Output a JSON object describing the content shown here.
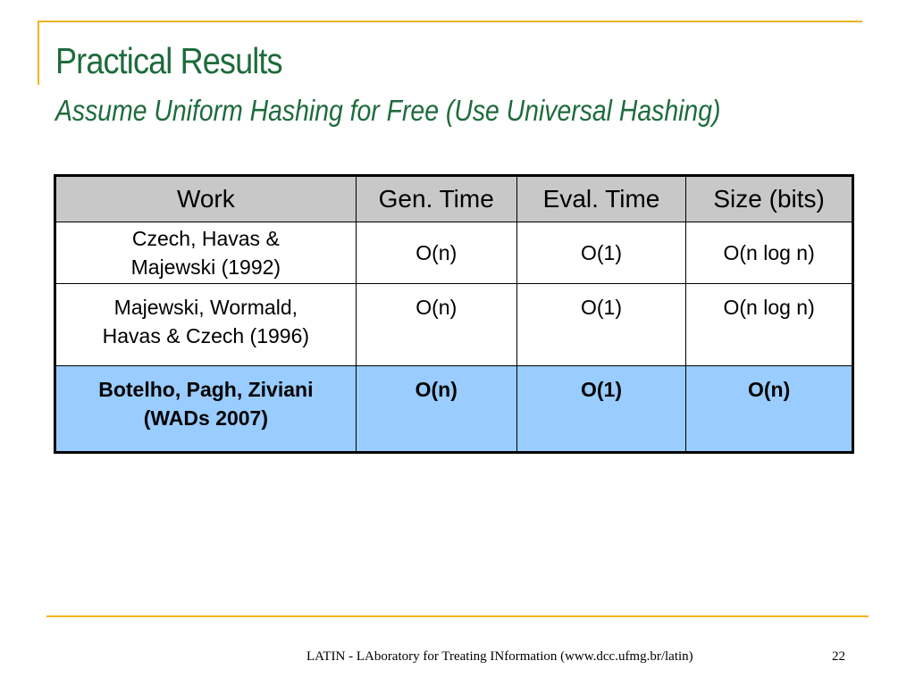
{
  "slide": {
    "title": "Practical Results",
    "subtitle": "Assume Uniform Hashing for Free (Use Universal Hashing)"
  },
  "table": {
    "headers": [
      "Work",
      "Gen. Time",
      "Eval. Time",
      "Size (bits)"
    ],
    "rows": [
      {
        "work": [
          "Czech, Havas &",
          "Majewski (1992)"
        ],
        "gen_time": "O(n)",
        "eval_time": "O(1)",
        "size": "O(n log n)"
      },
      {
        "work": [
          "Majewski, Wormald,",
          "Havas & Czech (1996)"
        ],
        "gen_time": "O(n)",
        "eval_time": "O(1)",
        "size": "O(n log n)"
      },
      {
        "work": [
          "Botelho, Pagh, Ziviani",
          "(WADs 2007)"
        ],
        "gen_time": "O(n)",
        "eval_time": "O(1)",
        "size": "O(n)"
      }
    ]
  },
  "footer": {
    "text": "LATIN - LAboratory for Treating INformation (www.dcc.ufmg.br/latin)",
    "page_number": "22"
  },
  "colors": {
    "accent_line": "#f2b41c",
    "title": "#1e6b3c",
    "header_bg": "#c8c8c8",
    "highlight_row_bg": "#99ccff"
  }
}
